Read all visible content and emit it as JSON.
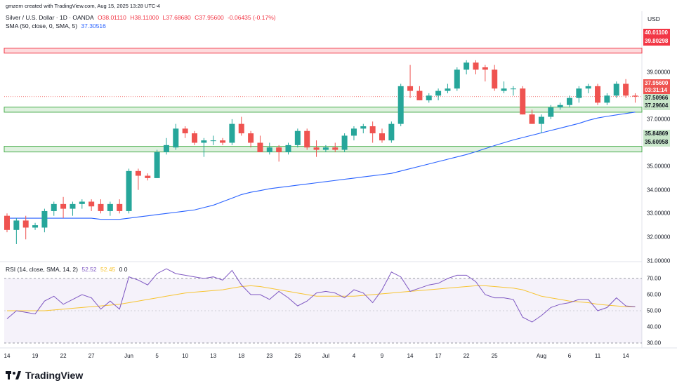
{
  "header": {
    "line1": "gmzern created with TradingView.com, Aug 15, 2025 13:28 UTC-4",
    "symbol": "Silver / U.S. Dollar · 1D · OANDA",
    "o": "O38.01110",
    "h": "H38.11000",
    "l": "L37.68680",
    "c": "C37.95600",
    "chg": "-0.06435 (-0.17%)",
    "sma_label": "SMA (50, close, 0, SMA, 5)",
    "sma_value": "37.30516",
    "rsi_label": "RSI (14, close, SMA, 14, 2)",
    "rsi_value": "52.52",
    "rsi_ma_value": "52.45",
    "rsi_extra": "0 0"
  },
  "axis": {
    "currency": "USD",
    "price_ticks": [
      "39.00000",
      "38.00000",
      "37.00000",
      "36.00000",
      "35.00000",
      "34.00000",
      "33.00000",
      "32.00000",
      "31.00000"
    ],
    "rsi_ticks": [
      "70.00",
      "60.00",
      "50.00",
      "40.00",
      "30.00"
    ],
    "x_ticks": [
      "14",
      "19",
      "22",
      "27",
      "Jun",
      "5",
      "10",
      "13",
      "18",
      "23",
      "26",
      "Jul",
      "4",
      "9",
      "14",
      "17",
      "22",
      "25",
      "Aug",
      "6",
      "11",
      "14"
    ]
  },
  "price_labels": {
    "r1_top": "40.01100",
    "r1_bot": "39.80298",
    "last": "37.95600",
    "countdown": "03:31:14",
    "z1_top": "37.50966",
    "z1_bot": "37.29604",
    "z2_top": "35.84869",
    "z2_bot": "35.60958"
  },
  "colors": {
    "up": "#26a69a",
    "down": "#ef5350",
    "sma": "#2962ff",
    "rsi": "#7e57c2",
    "rsi_ma": "#f7c431",
    "resistance": "#f23645",
    "support": "#4caf50"
  },
  "chart_data": {
    "type": "candlestick",
    "title": "Silver / U.S. Dollar · 1D · OANDA",
    "x": [
      "May 14",
      "May 15",
      "May 16",
      "May 19",
      "May 20",
      "May 21",
      "May 22",
      "May 23",
      "May 26",
      "May 27",
      "May 28",
      "May 29",
      "May 30",
      "Jun 2",
      "Jun 3",
      "Jun 4",
      "Jun 5",
      "Jun 6",
      "Jun 9",
      "Jun 10",
      "Jun 11",
      "Jun 12",
      "Jun 13",
      "Jun 16",
      "Jun 17",
      "Jun 18",
      "Jun 19",
      "Jun 20",
      "Jun 23",
      "Jun 24",
      "Jun 25",
      "Jun 26",
      "Jun 27",
      "Jun 30",
      "Jul 1",
      "Jul 2",
      "Jul 3",
      "Jul 4",
      "Jul 7",
      "Jul 8",
      "Jul 9",
      "Jul 10",
      "Jul 11",
      "Jul 14",
      "Jul 15",
      "Jul 16",
      "Jul 17",
      "Jul 18",
      "Jul 21",
      "Jul 22",
      "Jul 23",
      "Jul 24",
      "Jul 25",
      "Jul 28",
      "Jul 29",
      "Jul 30",
      "Jul 31",
      "Aug 1",
      "Aug 4",
      "Aug 5",
      "Aug 6",
      "Aug 7",
      "Aug 8",
      "Aug 11",
      "Aug 12",
      "Aug 13",
      "Aug 14",
      "Aug 15"
    ],
    "ohlc": [
      [
        32.9,
        33.0,
        32.2,
        32.3
      ],
      [
        32.3,
        32.8,
        31.7,
        32.7
      ],
      [
        32.7,
        32.9,
        31.9,
        32.4
      ],
      [
        32.4,
        32.6,
        32.3,
        32.5
      ],
      [
        32.4,
        33.2,
        32.2,
        33.1
      ],
      [
        33.1,
        33.5,
        32.9,
        33.4
      ],
      [
        33.4,
        33.7,
        32.8,
        33.2
      ],
      [
        33.2,
        33.5,
        32.9,
        33.4
      ],
      [
        33.4,
        33.6,
        33.2,
        33.5
      ],
      [
        33.5,
        33.6,
        33.1,
        33.3
      ],
      [
        33.4,
        33.6,
        33.0,
        33.1
      ],
      [
        33.1,
        33.5,
        32.9,
        33.4
      ],
      [
        33.4,
        33.6,
        33.0,
        33.1
      ],
      [
        33.1,
        34.9,
        33.0,
        34.8
      ],
      [
        34.8,
        34.9,
        34.0,
        34.6
      ],
      [
        34.6,
        34.7,
        34.4,
        34.5
      ],
      [
        34.5,
        35.7,
        34.5,
        35.6
      ],
      [
        35.6,
        36.2,
        35.5,
        35.9
      ],
      [
        35.8,
        36.8,
        35.7,
        36.6
      ],
      [
        36.6,
        36.7,
        36.2,
        36.4
      ],
      [
        36.4,
        36.5,
        35.9,
        36.0
      ],
      [
        36.0,
        36.2,
        35.4,
        36.1
      ],
      [
        36.1,
        36.3,
        35.9,
        36.1
      ],
      [
        36.1,
        36.2,
        35.9,
        36.0
      ],
      [
        36.0,
        37.0,
        35.9,
        36.8
      ],
      [
        36.8,
        37.1,
        36.3,
        36.4
      ],
      [
        36.4,
        36.5,
        35.8,
        36.0
      ],
      [
        36.0,
        36.3,
        35.6,
        35.6
      ],
      [
        35.6,
        36.0,
        35.5,
        35.8
      ],
      [
        35.8,
        35.9,
        35.2,
        35.6
      ],
      [
        35.6,
        36.0,
        35.5,
        35.9
      ],
      [
        35.9,
        36.6,
        35.8,
        36.5
      ],
      [
        36.5,
        36.6,
        35.7,
        35.8
      ],
      [
        35.8,
        36.1,
        35.4,
        35.7
      ],
      [
        35.7,
        35.9,
        35.6,
        35.8
      ],
      [
        35.8,
        36.0,
        35.6,
        35.7
      ],
      [
        35.7,
        36.4,
        35.6,
        36.3
      ],
      [
        36.3,
        36.7,
        36.1,
        36.6
      ],
      [
        36.6,
        36.8,
        36.4,
        36.7
      ],
      [
        36.7,
        36.9,
        36.0,
        36.4
      ],
      [
        36.4,
        36.6,
        36.0,
        36.1
      ],
      [
        36.1,
        36.9,
        36.0,
        36.8
      ],
      [
        36.8,
        38.5,
        36.7,
        38.4
      ],
      [
        38.4,
        39.3,
        37.9,
        38.2
      ],
      [
        38.2,
        38.4,
        37.8,
        37.8
      ],
      [
        37.8,
        38.1,
        37.7,
        38.0
      ],
      [
        38.0,
        38.3,
        37.8,
        38.2
      ],
      [
        38.2,
        38.5,
        38.1,
        38.3
      ],
      [
        38.3,
        39.2,
        38.2,
        39.1
      ],
      [
        39.1,
        39.5,
        38.9,
        39.4
      ],
      [
        39.4,
        39.5,
        38.9,
        39.1
      ],
      [
        39.2,
        39.3,
        38.6,
        39.1
      ],
      [
        39.1,
        39.3,
        38.2,
        38.3
      ],
      [
        38.2,
        38.6,
        38.1,
        38.3
      ],
      [
        38.3,
        38.4,
        38.0,
        38.3
      ],
      [
        38.3,
        38.4,
        37.2,
        37.2
      ],
      [
        37.2,
        37.4,
        36.8,
        36.8
      ],
      [
        36.8,
        37.2,
        36.4,
        37.1
      ],
      [
        37.1,
        37.6,
        37.0,
        37.5
      ],
      [
        37.5,
        37.7,
        37.4,
        37.6
      ],
      [
        37.6,
        38.0,
        37.5,
        37.9
      ],
      [
        37.9,
        38.4,
        37.7,
        38.3
      ],
      [
        38.3,
        38.5,
        38.1,
        38.4
      ],
      [
        38.4,
        38.5,
        37.6,
        37.7
      ],
      [
        37.7,
        38.1,
        37.6,
        38.0
      ],
      [
        38.0,
        38.6,
        37.9,
        38.5
      ],
      [
        38.5,
        38.7,
        37.9,
        38.0
      ],
      [
        38.0,
        38.1,
        37.7,
        37.96
      ]
    ],
    "sma": [
      32.8,
      32.8,
      32.8,
      32.8,
      32.8,
      32.8,
      32.8,
      32.8,
      32.8,
      32.8,
      32.75,
      32.75,
      32.75,
      32.8,
      32.85,
      32.9,
      32.95,
      33.0,
      33.05,
      33.1,
      33.15,
      33.25,
      33.35,
      33.5,
      33.65,
      33.8,
      33.9,
      33.97,
      34.05,
      34.1,
      34.15,
      34.2,
      34.25,
      34.3,
      34.35,
      34.4,
      34.45,
      34.5,
      34.55,
      34.6,
      34.65,
      34.7,
      34.8,
      34.9,
      35.0,
      35.1,
      35.2,
      35.3,
      35.4,
      35.5,
      35.62,
      35.75,
      35.88,
      36.0,
      36.12,
      36.22,
      36.32,
      36.42,
      36.52,
      36.62,
      36.72,
      36.82,
      36.95,
      37.05,
      37.12,
      37.18,
      37.24,
      37.3
    ],
    "rsi": [
      45,
      50,
      49,
      48,
      56,
      59,
      54,
      57,
      60,
      58,
      51,
      56,
      51,
      71,
      69,
      66,
      73,
      76,
      73,
      72,
      71,
      70,
      71,
      69,
      75,
      66,
      60,
      60,
      57,
      62,
      58,
      53,
      56,
      61,
      62,
      61,
      58,
      63,
      61,
      55,
      63,
      74,
      71,
      62,
      64,
      66,
      67,
      70,
      72,
      72,
      68,
      60,
      58,
      58,
      57,
      46,
      43,
      47,
      52,
      54,
      55,
      57,
      57,
      50,
      52,
      58,
      53,
      52.5
    ],
    "rsi_ma": [
      50,
      50,
      50,
      50,
      50,
      50.5,
      51,
      51.5,
      52,
      52.5,
      53,
      53.5,
      54,
      55,
      56,
      57,
      58,
      59,
      60,
      61,
      61.5,
      62,
      62.5,
      63,
      64,
      65,
      65.5,
      65,
      64,
      63,
      62,
      61,
      60,
      59,
      59,
      59,
      59,
      59,
      59.5,
      60,
      60.5,
      61,
      61.5,
      62,
      62.5,
      63,
      63.5,
      64,
      64.5,
      65,
      65.5,
      65.5,
      65,
      64.5,
      64,
      63,
      61,
      59,
      58,
      57,
      56,
      55.5,
      55,
      54,
      53.5,
      53,
      52.5,
      52.45
    ],
    "resistance_zone": [
      39.80298,
      40.011
    ],
    "support_zones": [
      [
        37.29604,
        37.50966
      ],
      [
        35.60958,
        35.84869
      ]
    ],
    "last_price": 37.956,
    "y_range": [
      30.7,
      40.3
    ],
    "rsi_range": [
      27,
      73
    ],
    "rsi_levels": [
      30,
      70
    ],
    "grid": false,
    "legend": "top-left"
  }
}
